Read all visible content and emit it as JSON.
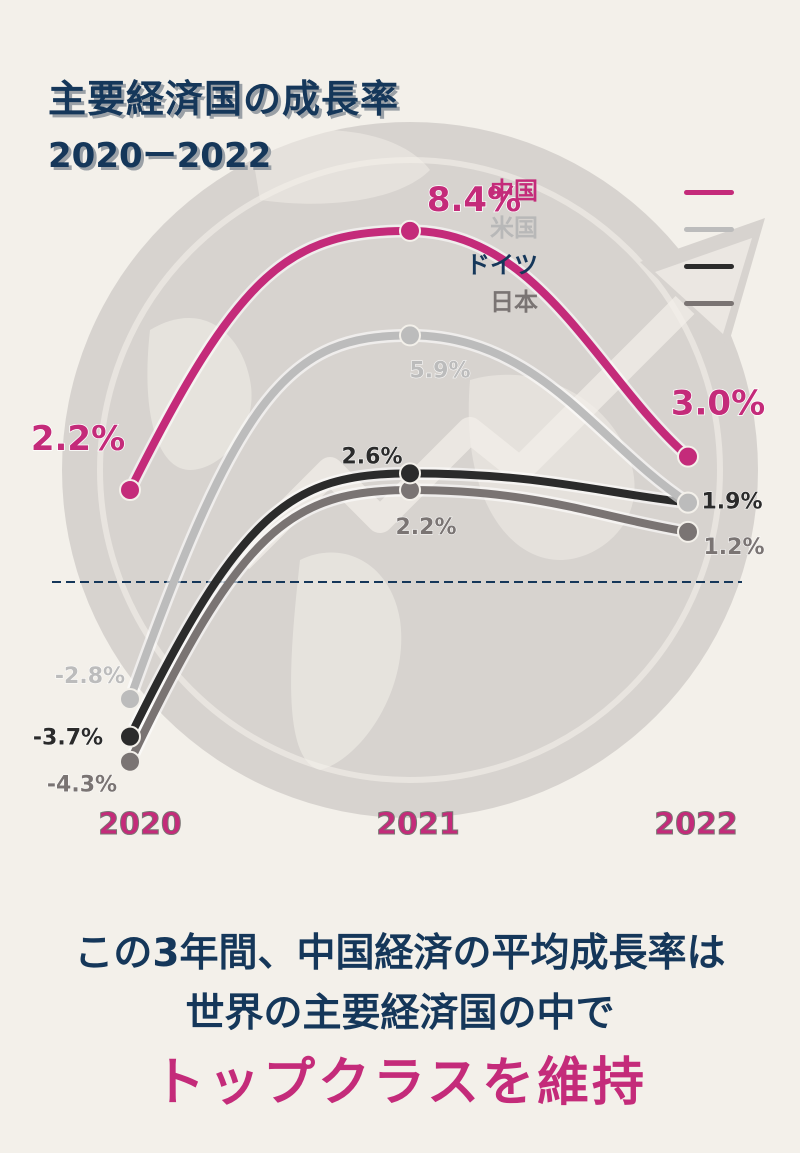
{
  "title": "主要経済国の成長率",
  "subtitle": "2020ー2022",
  "colors": {
    "china": "#c42b7a",
    "us": "#bcbcbc",
    "germany": "#2b2b2b",
    "japan": "#7a7473",
    "navy": "#15375a",
    "globe": "#d7d3cf"
  },
  "chart_data": {
    "type": "line",
    "x": [
      "2020",
      "2021",
      "2022"
    ],
    "series": [
      {
        "name": "中国",
        "values": [
          2.2,
          8.4,
          3.0
        ],
        "labels": [
          "2.2%",
          "8.4%",
          "3.0%"
        ],
        "color": "#c42b7a"
      },
      {
        "name": "米国",
        "values": [
          -2.8,
          5.9,
          1.9
        ],
        "labels": [
          "-2.8%",
          "5.9%",
          ""
        ],
        "color": "#bcbcbc"
      },
      {
        "name": "ドイツ",
        "values": [
          -3.7,
          2.6,
          1.9
        ],
        "labels": [
          "-3.7%",
          "2.6%",
          "1.9%"
        ],
        "color": "#2b2b2b"
      },
      {
        "name": "日本",
        "values": [
          -4.3,
          2.2,
          1.2
        ],
        "labels": [
          "-4.3%",
          "2.2%",
          "1.2%"
        ],
        "color": "#7a7473"
      }
    ],
    "ylim": [
      -4.3,
      8.4
    ],
    "zero_line": true,
    "legend_position": "top-right",
    "grid": false
  },
  "caption": {
    "line1": "この3年間、中国経済の平均成長率は",
    "line2": "世界の主要経済国の中で",
    "line3": "トップクラスを維持"
  }
}
